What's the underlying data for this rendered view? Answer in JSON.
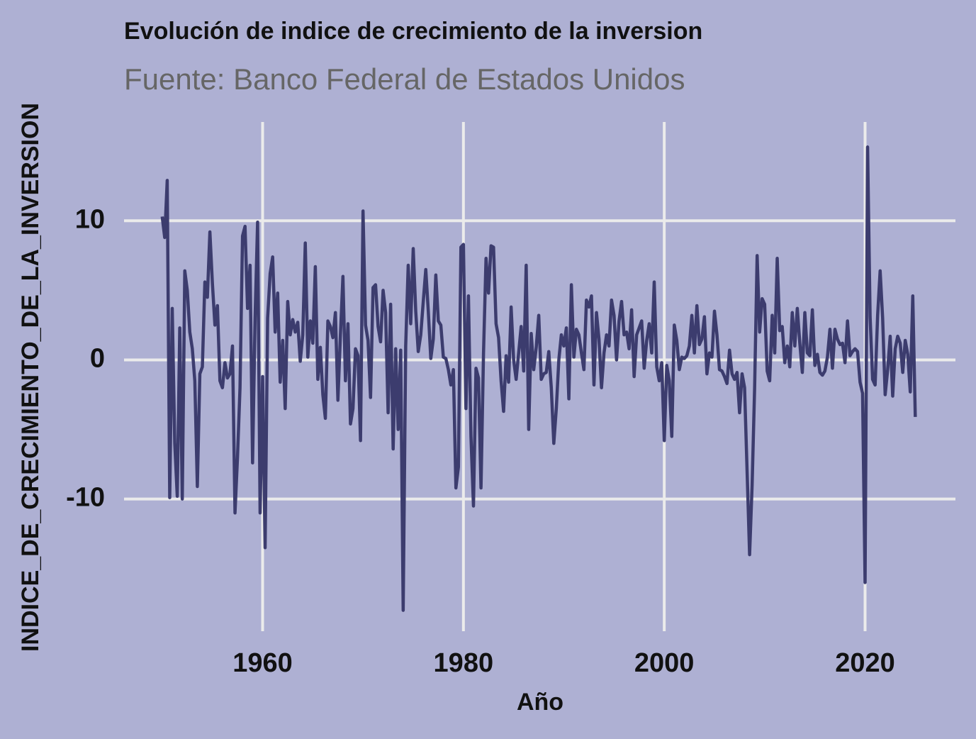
{
  "chart_data": {
    "type": "line",
    "title": "Evolución de indice de crecimiento de la inversion",
    "subtitle": "Fuente: Banco Federal de Estados Unidos",
    "xlabel": "Año",
    "ylabel": "INDICE_DE_CRECIMIENTO_DE_LA_INVERSION",
    "color": "#3c3c6e",
    "grid": true,
    "xlim": [
      1946.2,
      2029
    ],
    "ylim": [
      -19.5,
      17.1
    ],
    "xticks": [
      1960,
      1980,
      2000,
      2020
    ],
    "yticks": [
      -10,
      0,
      10
    ],
    "x": [
      1950,
      1950.25,
      1950.5,
      1950.75,
      1951,
      1951.25,
      1951.5,
      1951.75,
      1952,
      1952.25,
      1952.5,
      1952.75,
      1953,
      1953.25,
      1953.5,
      1953.75,
      1954,
      1954.25,
      1954.5,
      1954.75,
      1955,
      1955.25,
      1955.5,
      1955.75,
      1956,
      1956.25,
      1956.5,
      1956.75,
      1957,
      1957.25,
      1957.5,
      1957.75,
      1958,
      1958.25,
      1958.5,
      1958.75,
      1959,
      1959.25,
      1959.5,
      1959.75,
      1960,
      1960.25,
      1960.5,
      1960.75,
      1961,
      1961.25,
      1961.5,
      1961.75,
      1962,
      1962.25,
      1962.5,
      1962.75,
      1963,
      1963.25,
      1963.5,
      1963.75,
      1964,
      1964.25,
      1964.5,
      1964.75,
      1965,
      1965.25,
      1965.5,
      1965.75,
      1966,
      1966.25,
      1966.5,
      1966.75,
      1967,
      1967.25,
      1967.5,
      1967.75,
      1968,
      1968.25,
      1968.5,
      1968.75,
      1969,
      1969.25,
      1969.5,
      1969.75,
      1970,
      1970.25,
      1970.5,
      1970.75,
      1971,
      1971.25,
      1971.5,
      1971.75,
      1972,
      1972.25,
      1972.5,
      1972.75,
      1973,
      1973.25,
      1973.5,
      1973.75,
      1974,
      1974.25,
      1974.5,
      1974.75,
      1975,
      1975.25,
      1975.5,
      1975.75,
      1976,
      1976.25,
      1976.5,
      1976.75,
      1977,
      1977.25,
      1977.5,
      1977.75,
      1978,
      1978.25,
      1978.5,
      1978.75,
      1979,
      1979.25,
      1979.5,
      1979.75,
      1980,
      1980.25,
      1980.5,
      1980.75,
      1981,
      1981.25,
      1981.5,
      1981.75,
      1982,
      1982.25,
      1982.5,
      1982.75,
      1983,
      1983.25,
      1983.5,
      1983.75,
      1984,
      1984.25,
      1984.5,
      1984.75,
      1985,
      1985.25,
      1985.5,
      1985.75,
      1986,
      1986.25,
      1986.5,
      1986.75,
      1987,
      1987.25,
      1987.5,
      1987.75,
      1988,
      1988.25,
      1988.5,
      1988.75,
      1989,
      1989.25,
      1989.5,
      1989.75,
      1990,
      1990.25,
      1990.5,
      1990.75,
      1991,
      1991.25,
      1991.5,
      1991.75,
      1992,
      1992.25,
      1992.5,
      1992.75,
      1993,
      1993.25,
      1993.5,
      1993.75,
      1994,
      1994.25,
      1994.5,
      1994.75,
      1995,
      1995.25,
      1995.5,
      1995.75,
      1996,
      1996.25,
      1996.5,
      1996.75,
      1997,
      1997.25,
      1997.5,
      1997.75,
      1998,
      1998.25,
      1998.5,
      1998.75,
      1999,
      1999.25,
      1999.5,
      1999.75,
      2000,
      2000.25,
      2000.5,
      2000.75,
      2001,
      2001.25,
      2001.5,
      2001.75,
      2002,
      2002.25,
      2002.5,
      2002.75,
      2003,
      2003.25,
      2003.5,
      2003.75,
      2004,
      2004.25,
      2004.5,
      2004.75,
      2005,
      2005.25,
      2005.5,
      2005.75,
      2006,
      2006.25,
      2006.5,
      2006.75,
      2007,
      2007.25,
      2007.5,
      2007.75,
      2008,
      2008.25,
      2008.5,
      2008.75,
      2009,
      2009.25,
      2009.5,
      2009.75,
      2010,
      2010.25,
      2010.5,
      2010.75,
      2011,
      2011.25,
      2011.5,
      2011.75,
      2012,
      2012.25,
      2012.5,
      2012.75,
      2013,
      2013.25,
      2013.5,
      2013.75,
      2014,
      2014.25,
      2014.5,
      2014.75,
      2015,
      2015.25,
      2015.5,
      2015.75,
      2016,
      2016.25,
      2016.5,
      2016.75,
      2017,
      2017.25,
      2017.5,
      2017.75,
      2018,
      2018.25,
      2018.5,
      2018.75,
      2019,
      2019.25,
      2019.5,
      2019.75,
      2020,
      2020.25,
      2020.5,
      2020.75,
      2021,
      2021.25,
      2021.5,
      2021.75,
      2022,
      2022.25,
      2022.5,
      2022.75,
      2023,
      2023.25,
      2023.5,
      2023.75,
      2024,
      2024.25,
      2024.5,
      2024.75,
      2025
    ],
    "values": [
      10.3,
      8.8,
      12.9,
      -9.9,
      3.7,
      -6,
      -9.8,
      2.3,
      -10,
      6.4,
      5,
      2,
      0.8,
      -1.5,
      -9.1,
      -1,
      -0.5,
      5.6,
      4.5,
      9.2,
      5.5,
      2.5,
      3.9,
      -1.5,
      -2,
      -0.2,
      -1.3,
      -1,
      1,
      -11,
      -7,
      -2,
      8.9,
      9.6,
      3.7,
      6.8,
      -7.4,
      3,
      9.9,
      -11,
      -1.2,
      -13.5,
      3,
      6.2,
      7.4,
      2,
      4.8,
      -1.6,
      1.4,
      -3.5,
      4.2,
      1.8,
      2.9,
      2,
      2.7,
      -0.1,
      1.8,
      8.4,
      0.2,
      2.8,
      1.2,
      6.7,
      -1.4,
      0.9,
      -2.5,
      -4.2,
      2.8,
      2.4,
      1.6,
      3.4,
      -2.9,
      1.8,
      6,
      -1.5,
      2.6,
      -4.6,
      -3.5,
      0.8,
      0.3,
      -5.8,
      10.7,
      2.5,
      1.4,
      -2.7,
      5.2,
      5.4,
      2.4,
      1.3,
      5,
      3.4,
      -3.8,
      4,
      -6.4,
      0.8,
      -5,
      0.7,
      -18,
      1,
      6.8,
      2.6,
      8,
      3.5,
      0.6,
      1.8,
      4.2,
      6.5,
      3.5,
      0.1,
      1.5,
      6.1,
      2.8,
      2.5,
      0.2,
      0.1,
      -0.7,
      -1.8,
      -0.7,
      -9.2,
      -7.7,
      8.1,
      8.3,
      -3.5,
      4.6,
      -5.5,
      -10.5,
      -0.6,
      -1.3,
      -9.2,
      0.5,
      7.3,
      4.8,
      8.2,
      8.1,
      2.6,
      1.6,
      -1.5,
      -3.7,
      0.3,
      -1.6,
      3.8,
      0,
      -1.4,
      0.5,
      2.4,
      -0.8,
      6.8,
      -5,
      1.9,
      -0.7,
      0.9,
      3.2,
      -1.4,
      -1,
      -0.9,
      0.6,
      -2,
      -6,
      -3.5,
      0,
      1.8,
      1.0,
      2.3,
      -2.8,
      5.4,
      0.2,
      2.2,
      1.8,
      0.5,
      -0.7,
      4.3,
      3.8,
      4.6,
      -1.8,
      3.4,
      1.5,
      -2,
      0.5,
      1.8,
      1,
      4.3,
      3.2,
      0,
      2.8,
      4.2,
      1.8,
      2.0,
      0.8,
      3.6,
      -1.2,
      1.8,
      2.3,
      2.8,
      -0.6,
      1.4,
      2.6,
      0.5,
      5.6,
      -0.5,
      -1.5,
      -0.2,
      -5.8,
      -0.4,
      -1.5,
      -5.5,
      2.5,
      1.4,
      -0.7,
      0.2,
      0.1,
      0.3,
      1,
      3.2,
      0.5,
      3.9,
      1.1,
      1.5,
      3.1,
      -1,
      0.5,
      0.2,
      3.5,
      1.8,
      -0.7,
      -0.8,
      -1.2,
      -1.7,
      0.7,
      -1,
      -1.4,
      -0.9,
      -3.8,
      -1,
      -2,
      -8,
      -14,
      -9,
      -2,
      7.5,
      2,
      4.4,
      4,
      -0.8,
      -1.5,
      3.2,
      0.5,
      7.3,
      2.1,
      2.4,
      -0.2,
      1,
      -0.5,
      3.4,
      1,
      3.7,
      1.2,
      -0.9,
      3.4,
      0.5,
      0.3,
      3.6,
      -0.4,
      0.4,
      -0.9,
      -1.1,
      -0.8,
      0.2,
      2.2,
      -0.6,
      2.2,
      1.5,
      1.1,
      1.2,
      -0.2,
      2.8,
      0.3,
      0.6,
      0.8,
      0.6,
      -1.6,
      -2.4,
      -16,
      15.3,
      3.1,
      -1.4,
      -1.8,
      3.2,
      6.4,
      3,
      -2.5,
      -0.7,
      1.7,
      -2.6,
      0.8,
      1.7,
      1.2,
      -0.9,
      1.4,
      0.4,
      -2.3,
      4.6,
      -4.1
    ]
  }
}
